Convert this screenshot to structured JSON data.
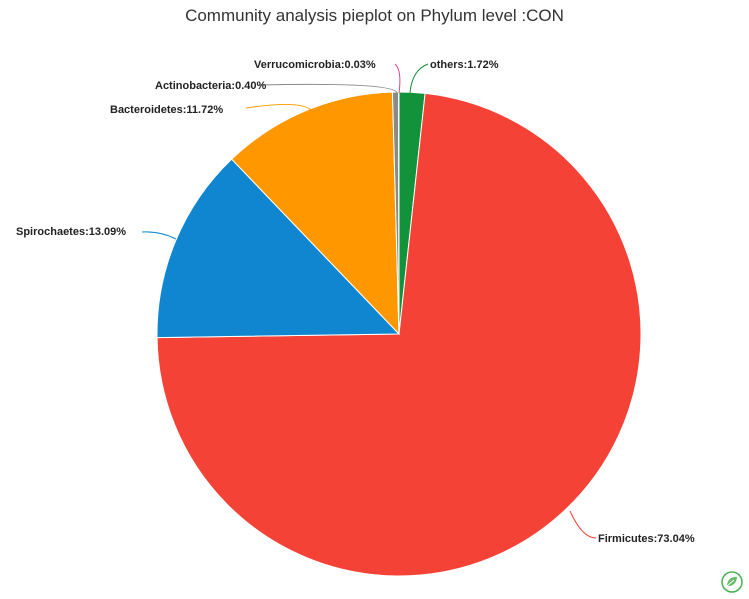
{
  "chart_data": {
    "type": "pie",
    "title": "Community analysis pieplot on Phylum level :CON",
    "slices": [
      {
        "label": "others",
        "percent": 1.72,
        "display": "others:1.72%",
        "color": "#12923a"
      },
      {
        "label": "Firmicutes",
        "percent": 73.04,
        "display": "Firmicutes:73.04%",
        "color": "#f44336"
      },
      {
        "label": "Spirochaetes",
        "percent": 13.09,
        "display": "Spirochaetes:13.09%",
        "color": "#1186d0"
      },
      {
        "label": "Bacteroidetes",
        "percent": 11.72,
        "display": "Bacteroidetes:11.72%",
        "color": "#ff9800"
      },
      {
        "label": "Actinobacteria",
        "percent": 0.4,
        "display": "Actinobacteria:0.40%",
        "color": "#8a8a8a"
      },
      {
        "label": "Verrucomicrobia",
        "percent": 0.03,
        "display": "Verrucomicrobia:0.03%",
        "color": "#e83e8c"
      }
    ],
    "start_angle": "12 o'clock",
    "direction": "clockwise"
  },
  "logo_icon": "leaf-logo-icon"
}
